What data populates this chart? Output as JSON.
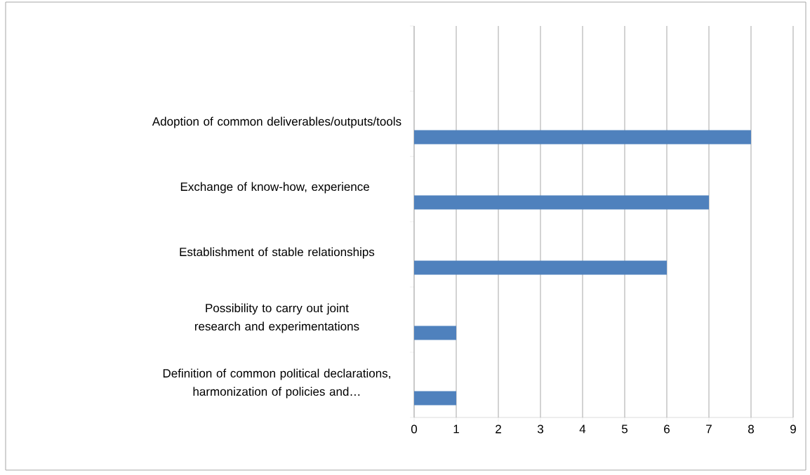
{
  "chart_data": {
    "type": "bar",
    "orientation": "horizontal",
    "categories": [
      null,
      "Adoption of common deliverables/outputs/tools",
      "Exchange of know-how, experience ",
      "Establishment of stable relationships",
      "Possibility to carry out joint research and experimentations",
      "Definition of common political declarations, harmonization of policies and…"
    ],
    "values": [
      null,
      8,
      7,
      6,
      1,
      1
    ],
    "color": "#4f81bd",
    "xlim": [
      0,
      9
    ],
    "xticks": [
      0,
      1,
      2,
      3,
      4,
      5,
      6,
      7,
      8,
      9
    ],
    "grid": "x"
  }
}
